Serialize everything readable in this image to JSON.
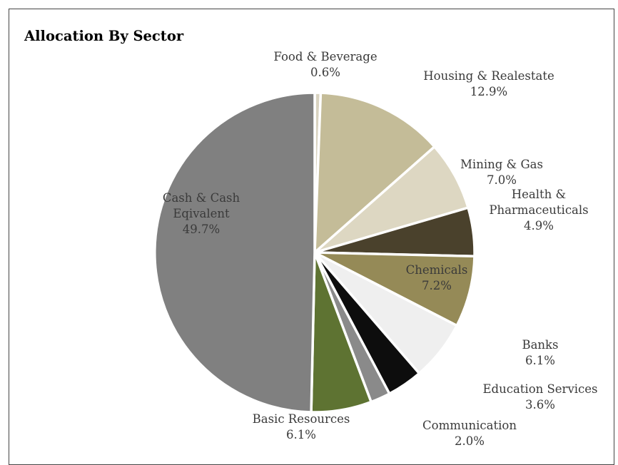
{
  "chart_data": {
    "type": "pie",
    "title": "Allocation By Sector",
    "start_angle_deg": 0,
    "direction": "clockwise",
    "slices": [
      {
        "name": "Food & Beverage",
        "lines": [
          "Food & Beverage"
        ],
        "value": 0.6,
        "value_label": "0.6%",
        "color": "#d9d3c0",
        "label_color": "#3a3a3a"
      },
      {
        "name": "Housing & Realestate",
        "lines": [
          "Housing & Realestate"
        ],
        "value": 12.9,
        "value_label": "12.9%",
        "color": "#c4bc98",
        "label_color": "#3a3a3a"
      },
      {
        "name": "Mining & Gas",
        "lines": [
          "Mining & Gas"
        ],
        "value": 7.0,
        "value_label": "7.0%",
        "color": "#ddd7c2",
        "label_color": "#3a3a3a"
      },
      {
        "name": "Health & Pharmaceuticals",
        "lines": [
          "Health &",
          "Pharmaceuticals"
        ],
        "value": 4.9,
        "value_label": "4.9%",
        "color": "#4a412c",
        "label_color": "#3a3a3a"
      },
      {
        "name": "Chemicals",
        "lines": [
          "Chemicals"
        ],
        "value": 7.2,
        "value_label": "7.2%",
        "color": "#958a57",
        "label_color": "#3a3a3a"
      },
      {
        "name": "Banks",
        "lines": [
          "Banks"
        ],
        "value": 6.1,
        "value_label": "6.1%",
        "color": "#efefef",
        "label_color": "#3a3a3a"
      },
      {
        "name": "Education Services",
        "lines": [
          "Education Services"
        ],
        "value": 3.6,
        "value_label": "3.6%",
        "color": "#0d0d0d",
        "label_color": "#3a3a3a"
      },
      {
        "name": "Communication",
        "lines": [
          "Communication"
        ],
        "value": 2.0,
        "value_label": "2.0%",
        "color": "#8a8a8a",
        "label_color": "#3a3a3a"
      },
      {
        "name": "Basic Resources",
        "lines": [
          "Basic Resources"
        ],
        "value": 6.1,
        "value_label": "6.1%",
        "color": "#5e7332",
        "label_color": "#3a3a3a"
      },
      {
        "name": "Cash & Cash Eqivalent",
        "lines": [
          "Cash & Cash",
          "Eqivalent"
        ],
        "value": 49.7,
        "value_label": "49.7%",
        "color": "#808080",
        "label_color": "#4a4a4a"
      }
    ]
  }
}
